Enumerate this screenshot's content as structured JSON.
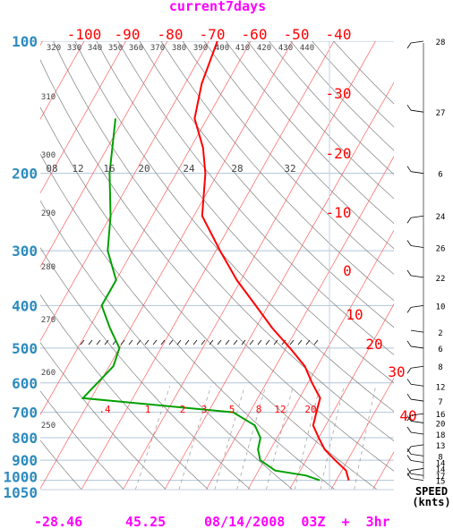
{
  "header": {
    "title": "current7days"
  },
  "footer": {
    "lat": "-28.46",
    "lon": "45.25",
    "datetime": "08/14/2008  03Z  +  3hr"
  },
  "speed_label": {
    "line1": "SPEED",
    "line2": "(knts)"
  },
  "colors": {
    "temp": "#ff0000",
    "dewpoint": "#00a000",
    "pressure_labels": "#2e8bbd",
    "title": "#ff00ff",
    "isotherms": "#ff6060",
    "dry_adiabats": "#808080",
    "theta_labels": "#404040",
    "mixing": "#999999"
  },
  "chart_data": {
    "type": "line",
    "title": "current7days",
    "y_axis": {
      "scale": "log",
      "range": [
        1050,
        100
      ],
      "tick_labels": [
        "100",
        "200",
        "300",
        "400",
        "500",
        "600",
        "700",
        "800",
        "900",
        "1000",
        "1050"
      ]
    },
    "temperature_axis_labels": [
      "-100",
      "-90",
      "-80",
      "-70",
      "-60",
      "-50",
      "-40",
      "-30",
      "-20",
      "-10",
      "0",
      "10",
      "20",
      "30",
      "40"
    ],
    "theta_labels": [
      "320",
      "330",
      "340",
      "350",
      "360",
      "370",
      "380",
      "390",
      "400",
      "410",
      "420",
      "430",
      "440",
      "310",
      "300",
      "290",
      "280",
      "270",
      "260",
      "250"
    ],
    "mixing_ratio_labels_upper": [
      "08",
      "12",
      "16",
      "20",
      "24",
      "28",
      "32"
    ],
    "mixing_ratio_labels_lower": [
      ".4",
      "1",
      "2",
      "3",
      "5",
      "8",
      "12",
      "20"
    ],
    "series": [
      {
        "values": [
          [
            1000,
            23
          ],
          [
            975,
            22
          ],
          [
            950,
            21
          ],
          [
            900,
            17
          ],
          [
            850,
            13
          ],
          [
            800,
            10
          ],
          [
            750,
            7
          ],
          [
            700,
            6
          ],
          [
            650,
            5
          ],
          [
            600,
            1
          ],
          [
            550,
            -3
          ],
          [
            500,
            -9
          ],
          [
            450,
            -16
          ],
          [
            400,
            -23
          ],
          [
            350,
            -31
          ],
          [
            300,
            -39
          ],
          [
            250,
            -48
          ],
          [
            200,
            -53
          ],
          [
            175,
            -57
          ],
          [
            150,
            -63
          ],
          [
            125,
            -66
          ],
          [
            100,
            -68
          ]
        ]
      },
      {
        "values": [
          [
            1000,
            16
          ],
          [
            975,
            12
          ],
          [
            950,
            4
          ],
          [
            900,
            -1
          ],
          [
            850,
            -3
          ],
          [
            800,
            -4
          ],
          [
            750,
            -7
          ],
          [
            700,
            -14
          ],
          [
            650,
            -52
          ],
          [
            550,
            -49
          ],
          [
            500,
            -50
          ],
          [
            450,
            -55
          ],
          [
            400,
            -60
          ],
          [
            350,
            -60
          ],
          [
            300,
            -66
          ],
          [
            250,
            -70
          ],
          [
            200,
            -76
          ],
          [
            150,
            -82
          ]
        ]
      }
    ],
    "wind_barbs": [
      {
        "pressure": 100,
        "speed": 28
      },
      {
        "pressure": 145,
        "speed": 27
      },
      {
        "pressure": 200,
        "speed": 6
      },
      {
        "pressure": 250,
        "speed": 24
      },
      {
        "pressure": 295,
        "speed": 26
      },
      {
        "pressure": 345,
        "speed": 22
      },
      {
        "pressure": 400,
        "speed": 10
      },
      {
        "pressure": 460,
        "speed": 2
      },
      {
        "pressure": 500,
        "speed": 6
      },
      {
        "pressure": 550,
        "speed": 8
      },
      {
        "pressure": 610,
        "speed": 12
      },
      {
        "pressure": 660,
        "speed": 7
      },
      {
        "pressure": 705,
        "speed": 16
      },
      {
        "pressure": 740,
        "speed": 20
      },
      {
        "pressure": 785,
        "speed": 18
      },
      {
        "pressure": 830,
        "speed": 13
      },
      {
        "pressure": 880,
        "speed": 8
      },
      {
        "pressure": 910,
        "speed": 14
      },
      {
        "pressure": 940,
        "speed": 14
      },
      {
        "pressure": 975,
        "speed": 17
      },
      {
        "pressure": 1000,
        "speed": 15
      }
    ]
  }
}
